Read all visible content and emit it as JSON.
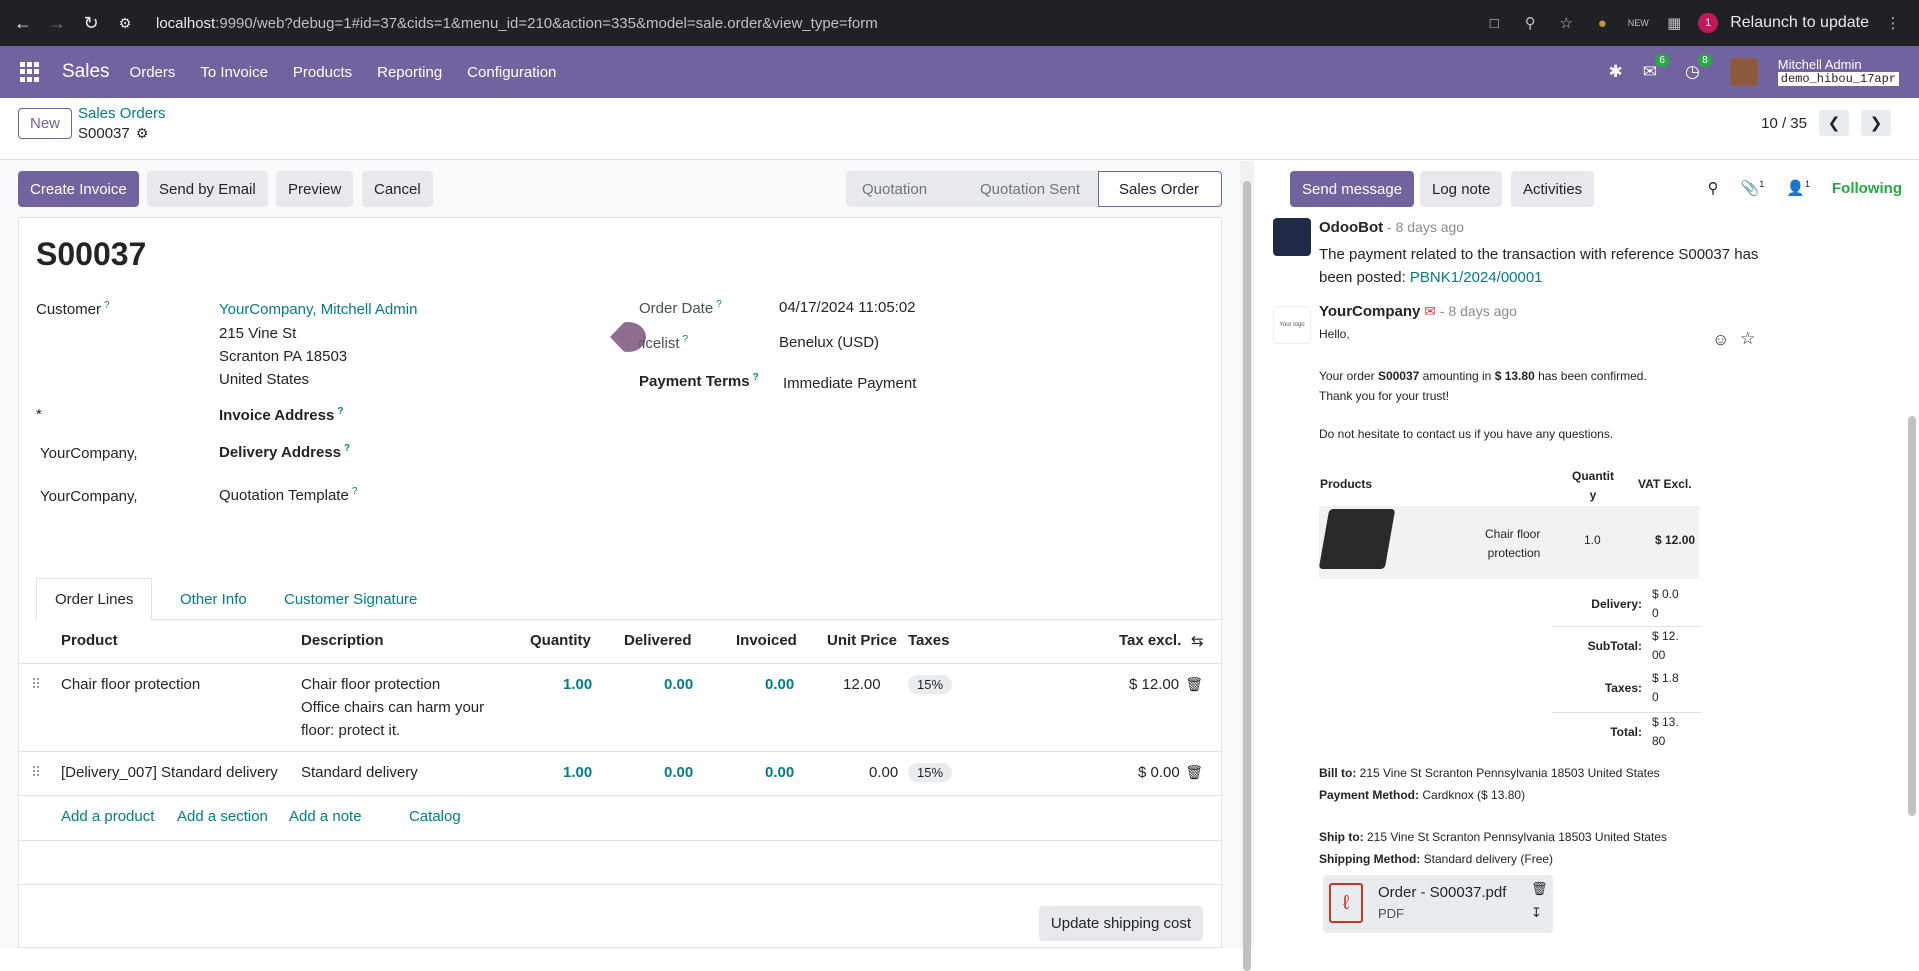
{
  "browser": {
    "url_host": "localhost",
    "url_rest": ":9990/web?debug=1#id=37&cids=1&menu_id=210&action=335&model=sale.order&view_type=form",
    "relaunch": "Relaunch to update",
    "profile_initial": "1"
  },
  "navbar": {
    "app": "Sales",
    "menu": [
      "Orders",
      "To Invoice",
      "Products",
      "Reporting",
      "Configuration"
    ],
    "messages_count": "6",
    "activities_count": "8",
    "user": "Mitchell Admin",
    "db": "demo_hibou_17apr"
  },
  "control": {
    "new_label": "New",
    "breadcrumb": "Sales Orders",
    "record": "S00037",
    "pager": "10 / 35"
  },
  "statusbar": {
    "buttons": [
      "Create Invoice",
      "Send by Email",
      "Preview",
      "Cancel"
    ],
    "stages": [
      "Quotation",
      "Quotation Sent",
      "Sales Order"
    ]
  },
  "form": {
    "name": "S00037",
    "customer_label": "Customer",
    "customer": [
      "YourCompany, Mitchell Admin",
      "215 Vine St",
      "Scranton PA 18503",
      "United States"
    ],
    "required_star": "*",
    "invoice_address_label": "Invoice Address",
    "invoice_address": "YourCompany,",
    "delivery_address_label": "Delivery Address",
    "delivery_address": "YourCompany,",
    "quotation_template_label": "Quotation Template",
    "order_date_label": "Order Date",
    "order_date": "04/17/2024 11:05:02",
    "pricelist_label": "Pricelist",
    "pricelist": "Benelux (USD)",
    "payment_terms_label": "Payment Terms",
    "payment_terms": "Immediate Payment",
    "help_mark": "?"
  },
  "tabs": [
    "Order Lines",
    "Other Info",
    "Customer Signature"
  ],
  "lines": {
    "headers": [
      "Product",
      "Description",
      "Quantity",
      "Delivered",
      "Invoiced",
      "Unit Price",
      "Taxes",
      "Tax excl."
    ],
    "rows": [
      {
        "product": "Chair floor protection",
        "desc1": "Chair floor protection",
        "desc2": "Office chairs can harm your",
        "desc3": "floor: protect it.",
        "qty": "1.00",
        "delivered": "0.00",
        "invoiced": "0.00",
        "price": "12.00",
        "tax": "15%",
        "subtotal": "$ 12.00"
      },
      {
        "product": "[Delivery_007] Standard delivery",
        "desc1": "Standard delivery",
        "desc2": "",
        "desc3": "",
        "qty": "1.00",
        "delivered": "0.00",
        "invoiced": "0.00",
        "price": "0.00",
        "tax": "15%",
        "subtotal": "$ 0.00"
      }
    ],
    "add": [
      "Add a product",
      "Add a section",
      "Add a note",
      "Catalog"
    ],
    "update_shipping": "Update shipping cost"
  },
  "chatter": {
    "buttons": [
      "Send message",
      "Log note",
      "Activities"
    ],
    "attachments_count": "1",
    "followers_count": "1",
    "following": "Following",
    "msg1": {
      "author": "OdooBot",
      "time": "- 8 days ago",
      "line1": "The payment related to the transaction with reference S00037 has",
      "line2": "been posted: ",
      "link": "PBNK1/2024/00001"
    },
    "msg2": {
      "author": "YourCompany",
      "time": "- 8 days ago",
      "logo_text": "Your logo",
      "hello": "Hello,",
      "order_pre": "Your order ",
      "order_ref": "S00037",
      "order_mid": " amounting in ",
      "order_amount": "$ 13.80",
      "order_post": " has been confirmed.",
      "thanks": "Thank you for your trust!",
      "questions": "Do not hesitate to contact us if you have any questions.",
      "table_products": "Products",
      "table_qty_1": "Quantit",
      "table_qty_2": "y",
      "table_vat": "VAT Excl.",
      "product_name_1": "Chair floor",
      "product_name_2": "protection",
      "product_qty": "1.0",
      "product_price": "$ 12.00",
      "delivery_label": "Delivery:",
      "delivery_v1": "$ 0.0",
      "delivery_v2": "0",
      "subtotal_label": "SubTotal:",
      "subtotal_v1": "$ 12.",
      "subtotal_v2": "00",
      "taxes_label": "Taxes:",
      "taxes_v1": "$ 1.8",
      "taxes_v2": "0",
      "total_label": "Total:",
      "total_v1": "$ 13.",
      "total_v2": "80",
      "bill_to_label": "Bill to:",
      "bill_to": " 215 Vine St Scranton Pennsylvania 18503 United States",
      "payment_method_label": "Payment Method:",
      "payment_method": " Cardknox ($ 13.80)",
      "ship_to_label": "Ship to:",
      "ship_to": " 215 Vine St Scranton Pennsylvania 18503 United States",
      "shipping_method_label": "Shipping Method:",
      "shipping_method": " Standard delivery (Free)"
    },
    "attachment_name": "Order - S00037.pdf",
    "attachment_type": "PDF"
  },
  "colors": {
    "brand": "#71639e",
    "link": "#017e84",
    "success": "#28a745"
  }
}
